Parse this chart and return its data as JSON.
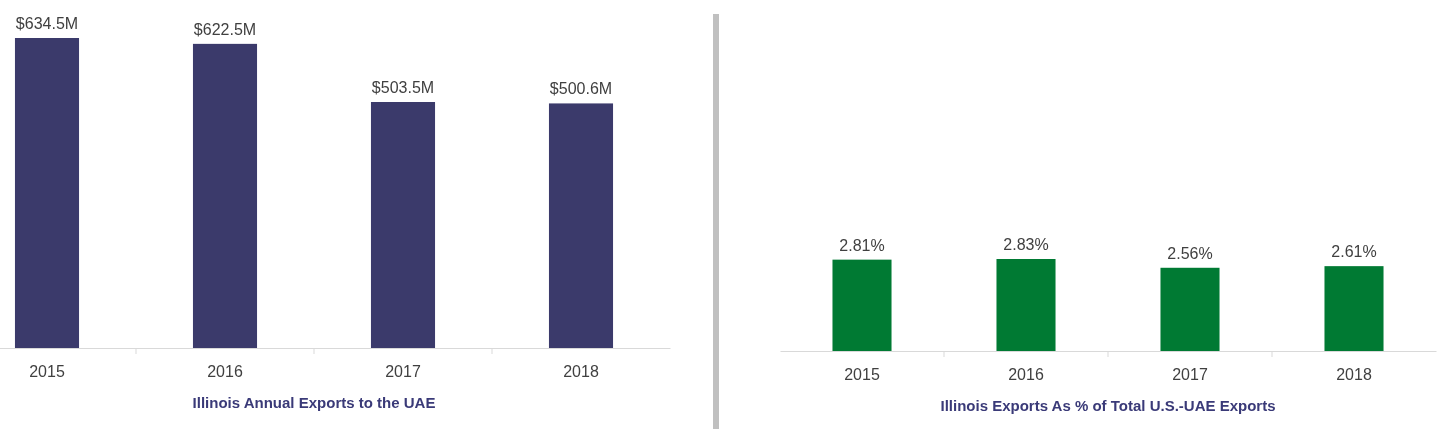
{
  "chart_data": [
    {
      "type": "bar",
      "xlabel": "Illinois Annual Exports to the UAE",
      "categories": [
        "2015",
        "2016",
        "2017",
        "2018"
      ],
      "values": [
        634.5,
        622.5,
        503.5,
        500.6
      ],
      "value_labels": [
        "$634.5M",
        "$622.5M",
        "$503.5M",
        "$500.6M"
      ],
      "color": "#3b3a6b"
    },
    {
      "type": "bar",
      "xlabel": "Illinois Exports As % of Total U.S.-UAE Exports",
      "categories": [
        "2015",
        "2016",
        "2017",
        "2018"
      ],
      "values": [
        2.81,
        2.83,
        2.56,
        2.61
      ],
      "value_labels": [
        "2.81%",
        "2.83%",
        "2.56%",
        "2.61%"
      ],
      "color": "#007a33"
    }
  ]
}
